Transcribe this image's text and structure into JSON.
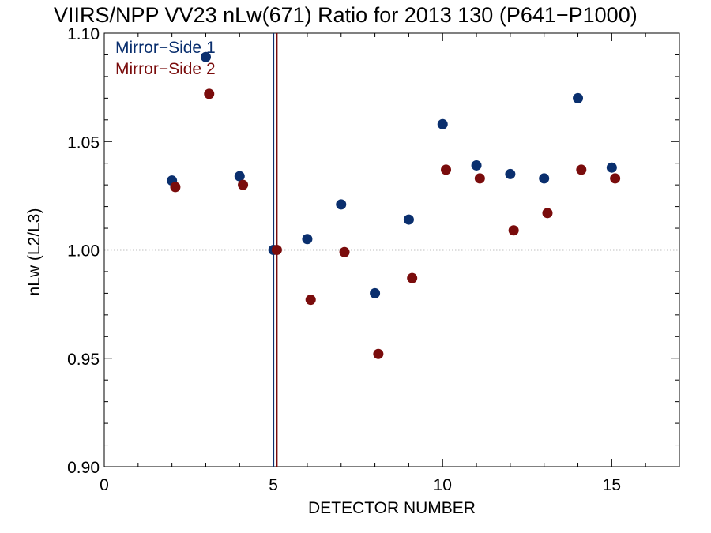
{
  "chart_data": {
    "type": "scatter",
    "title": "VIIRS/NPP VV23 nLw(671) Ratio for 2013 130 (P641−P1000)",
    "xlabel": "DETECTOR NUMBER",
    "ylabel": "nLw (L2/L3)",
    "xlim": [
      0,
      17
    ],
    "ylim": [
      0.9,
      1.1
    ],
    "xticks": [
      0,
      5,
      10,
      15
    ],
    "xtick_labels": [
      "0",
      "5",
      "10",
      "15"
    ],
    "yticks": [
      0.9,
      0.95,
      1.0,
      1.05,
      1.1
    ],
    "ytick_labels": [
      "0.90",
      "0.95",
      "1.00",
      "1.05",
      "1.10"
    ],
    "reference_line_y": 1.0,
    "legend_position": "top-left",
    "series": [
      {
        "name": "Mirror−Side 1",
        "color": "#0a2f6e",
        "vline_x": 5.0,
        "x": [
          2,
          3,
          4,
          5,
          6,
          7,
          8,
          9,
          10,
          11,
          12,
          13,
          14,
          15
        ],
        "y": [
          1.032,
          1.089,
          1.034,
          1.0,
          1.005,
          1.021,
          0.98,
          1.014,
          1.058,
          1.039,
          1.035,
          1.033,
          1.07,
          1.038
        ]
      },
      {
        "name": "Mirror−Side 2",
        "color": "#7a0c0c",
        "vline_x": 5.1,
        "x": [
          2.1,
          3.1,
          4.1,
          5.1,
          6.1,
          7.1,
          8.1,
          9.1,
          10.1,
          11.1,
          12.1,
          13.1,
          14.1,
          15.1
        ],
        "y": [
          1.029,
          1.072,
          1.03,
          1.0,
          0.977,
          0.999,
          0.952,
          0.987,
          1.037,
          1.033,
          1.009,
          1.017,
          1.037,
          1.033
        ]
      }
    ]
  }
}
